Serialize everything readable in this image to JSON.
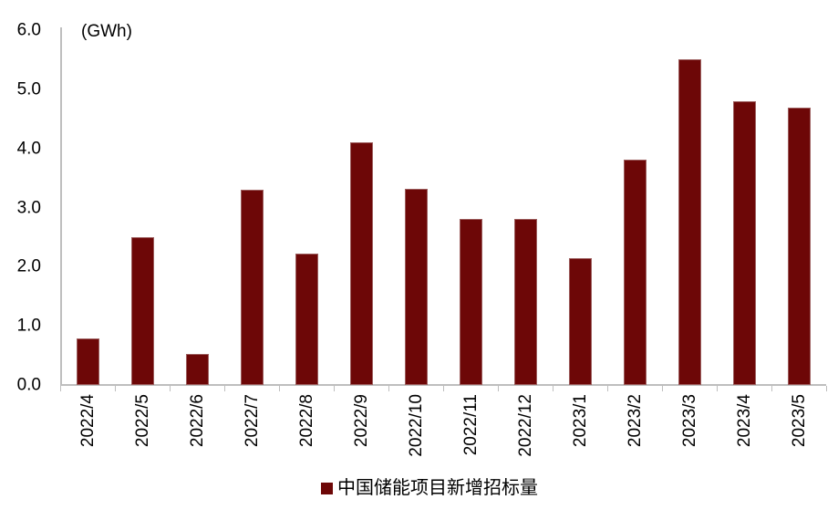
{
  "chart_data": {
    "type": "bar",
    "title": "",
    "unit_label": "(GWh)",
    "xlabel": "",
    "ylabel": "GWh",
    "categories": [
      "2022/4",
      "2022/5",
      "2022/6",
      "2022/7",
      "2022/8",
      "2022/9",
      "2022/10",
      "2022/11",
      "2022/12",
      "2023/1",
      "2023/2",
      "2023/3",
      "2023/4",
      "2023/5"
    ],
    "values": [
      0.79,
      2.5,
      0.52,
      3.3,
      2.22,
      4.1,
      3.31,
      2.81,
      2.81,
      2.15,
      3.81,
      5.5,
      4.79,
      4.69
    ],
    "ylim": [
      0,
      6
    ],
    "y_tick_values": [
      6,
      5,
      4,
      3,
      2,
      1,
      0
    ],
    "y_tick_labels": [
      "6.0",
      "5.0",
      "4.0",
      "3.0",
      "2.0",
      "1.0",
      "0.0"
    ],
    "grid": false,
    "legend_position": "bottom",
    "legend": "中国储能项目新增招标量",
    "bar_color": "#6D0707",
    "axis_color": "#BEBEBE",
    "text_color": "#000000"
  }
}
